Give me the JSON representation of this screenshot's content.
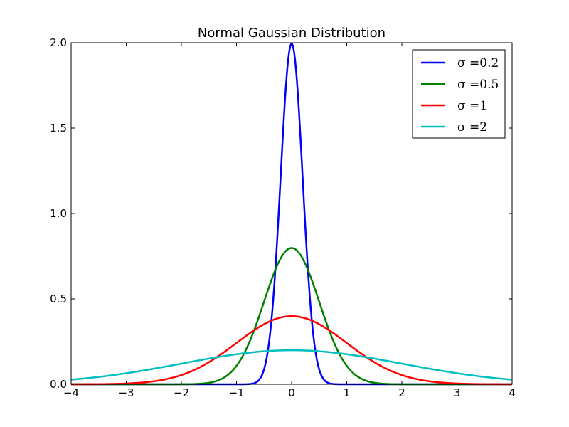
{
  "chart_data": {
    "type": "line",
    "title": "Normal Gaussian Distribution",
    "xlabel": "",
    "ylabel": "",
    "xlim": [
      -4,
      4
    ],
    "ylim": [
      0,
      2.0
    ],
    "x_ticks": [
      -4,
      -3,
      -2,
      -1,
      0,
      1,
      2,
      3,
      4
    ],
    "x_tick_labels": [
      "−4",
      "−3",
      "−2",
      "−1",
      "0",
      "1",
      "2",
      "3",
      "4"
    ],
    "y_ticks": [
      0,
      0.5,
      1.0,
      1.5,
      2.0
    ],
    "y_tick_labels": [
      "0.0",
      "0.5",
      "1.0",
      "1.5",
      "2.0"
    ],
    "grid": false,
    "legend_position": "top-right",
    "series": [
      {
        "name": "σ =0.2",
        "sigma": 0.2,
        "color": "#0000ff",
        "x": [
          -4,
          -0.8,
          -0.6,
          -0.4,
          -0.3,
          -0.2,
          -0.1,
          0,
          0.1,
          0.2,
          0.3,
          0.4,
          0.6,
          0.8,
          4
        ],
        "values": [
          0,
          0.0007,
          0.022,
          0.27,
          0.65,
          1.21,
          1.76,
          1.99,
          1.76,
          1.21,
          0.65,
          0.27,
          0.022,
          0.0007,
          0
        ]
      },
      {
        "name": "σ =0.5",
        "sigma": 0.5,
        "color": "#008000",
        "x": [
          -4,
          -2,
          -1.5,
          -1,
          -0.5,
          0,
          0.5,
          1,
          1.5,
          2,
          4
        ],
        "values": [
          0,
          0.0003,
          0.009,
          0.108,
          0.484,
          0.798,
          0.484,
          0.108,
          0.009,
          0.0003,
          0
        ]
      },
      {
        "name": "σ =1",
        "sigma": 1,
        "color": "#ff0000",
        "x": [
          -4,
          -3,
          -2,
          -1,
          0,
          1,
          2,
          3,
          4
        ],
        "values": [
          0.0001,
          0.0044,
          0.054,
          0.242,
          0.399,
          0.242,
          0.054,
          0.0044,
          0.0001
        ]
      },
      {
        "name": "σ =2",
        "sigma": 2,
        "color": "#00bfbf",
        "x": [
          -4,
          -3,
          -2,
          -1,
          0,
          1,
          2,
          3,
          4
        ],
        "values": [
          0.027,
          0.065,
          0.121,
          0.176,
          0.199,
          0.176,
          0.121,
          0.065,
          0.027
        ]
      }
    ]
  }
}
